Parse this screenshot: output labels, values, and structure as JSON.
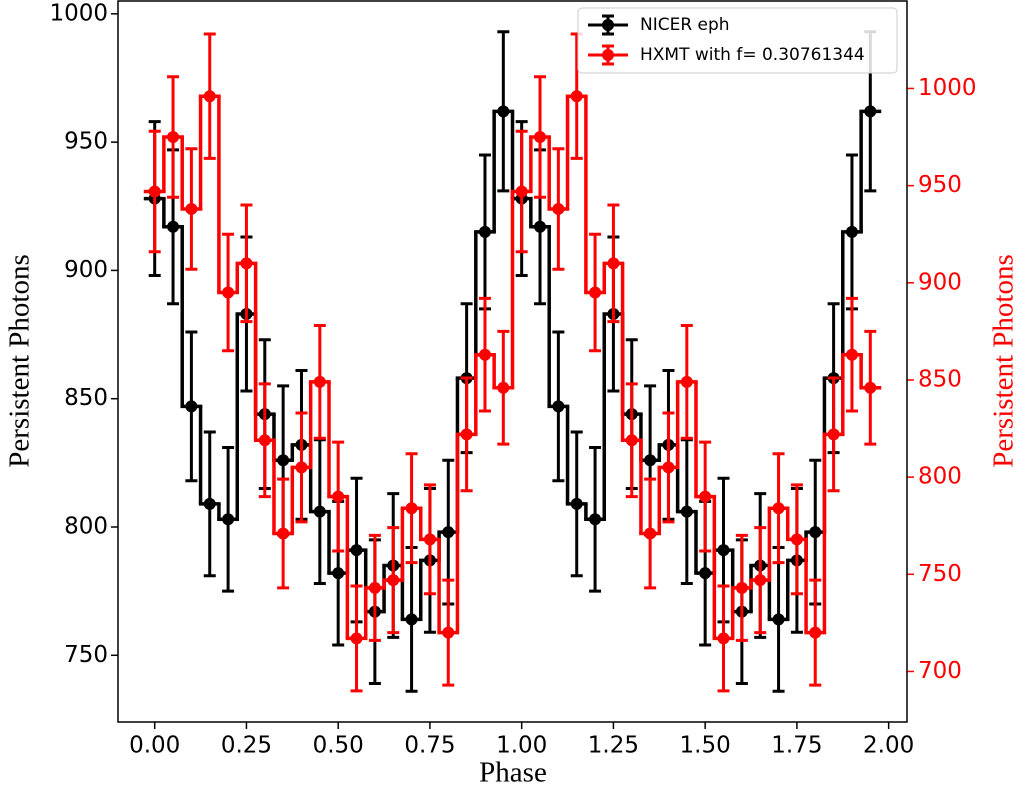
{
  "chart_data": {
    "type": "step-errorbar",
    "x_label": "Phase",
    "y_label": "Persistent Photons",
    "y2_label": "Persistent Photons",
    "y2_color": "#ff0000",
    "legend": "upper right",
    "xlim": [
      -0.1,
      2.05
    ],
    "ylim": [
      724,
      1005
    ],
    "y2lim": [
      674,
      1045
    ],
    "xticks": [
      {
        "value": 0,
        "label": "0.00"
      },
      {
        "value": 0.25,
        "label": "0.25"
      },
      {
        "value": 0.5,
        "label": "0.50"
      },
      {
        "value": 0.75,
        "label": "0.75"
      },
      {
        "value": 1,
        "label": "1.00"
      },
      {
        "value": 1.25,
        "label": "1.25"
      },
      {
        "value": 1.5,
        "label": "1.50"
      },
      {
        "value": 1.75,
        "label": "1.75"
      },
      {
        "value": 2,
        "label": "2.00"
      }
    ],
    "yticks": [
      750,
      800,
      850,
      900,
      950,
      1000
    ],
    "y2ticks": [
      700,
      750,
      800,
      850,
      900,
      950,
      1000
    ],
    "x": [
      0,
      0.05,
      0.1,
      0.15,
      0.2,
      0.25,
      0.3,
      0.35,
      0.4,
      0.45,
      0.5,
      0.55,
      0.6,
      0.65,
      0.7,
      0.75,
      0.8,
      0.85,
      0.9,
      0.95,
      1,
      1.05,
      1.1,
      1.15,
      1.2,
      1.25,
      1.3,
      1.35,
      1.4,
      1.45,
      1.5,
      1.55,
      1.6,
      1.65,
      1.7,
      1.75,
      1.8,
      1.85,
      1.9,
      1.95
    ],
    "step_width": 0.05,
    "series": [
      {
        "name": "NICER eph",
        "color": "#000000",
        "values": [
          928,
          917,
          847,
          809,
          803,
          883,
          844,
          826,
          832,
          806,
          782,
          791,
          767,
          785,
          764,
          787,
          798,
          858,
          915,
          962,
          928,
          917,
          847,
          809,
          803,
          883,
          844,
          826,
          832,
          806,
          782,
          791,
          767,
          785,
          764,
          787,
          798,
          858,
          915,
          962
        ],
        "errors": [
          30,
          30,
          29,
          28,
          28,
          30,
          29,
          29,
          29,
          28,
          28,
          28,
          28,
          28,
          28,
          28,
          28,
          29,
          30,
          31,
          30,
          30,
          29,
          28,
          28,
          30,
          29,
          29,
          29,
          28,
          28,
          28,
          28,
          28,
          28,
          28,
          28,
          29,
          30,
          31
        ]
      },
      {
        "name": "HXMT with f= 0.30761344",
        "color": "#ff0000",
        "axis": "y2",
        "values": [
          947,
          975,
          938,
          996,
          895,
          910,
          819,
          771,
          805,
          849,
          790,
          717,
          743,
          747,
          784,
          768,
          720,
          822,
          863,
          846,
          947,
          975,
          938,
          996,
          895,
          910,
          819,
          771,
          805,
          849,
          790,
          717,
          743,
          747,
          784,
          768,
          720,
          822,
          863,
          846
        ],
        "errors": [
          31,
          31,
          31,
          32,
          30,
          30,
          29,
          28,
          28,
          29,
          28,
          27,
          27,
          27,
          28,
          28,
          27,
          29,
          29,
          29,
          31,
          31,
          31,
          32,
          30,
          30,
          29,
          28,
          28,
          29,
          28,
          27,
          27,
          27,
          28,
          28,
          27,
          29,
          29,
          29
        ]
      }
    ]
  }
}
